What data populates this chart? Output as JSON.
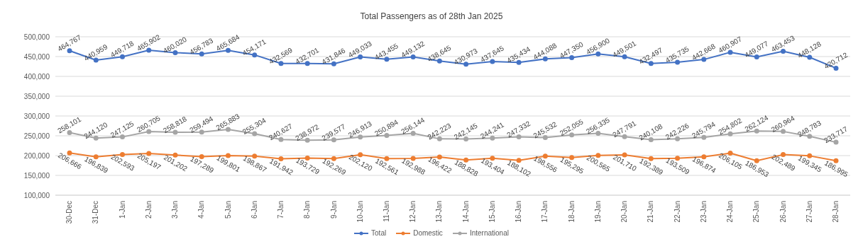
{
  "chart_data": {
    "type": "line",
    "title": "Total Passengers as of 28th Jan 2025",
    "categories": [
      "30-Dec",
      "31-Dec",
      "1-Jan",
      "2-Jan",
      "3-Jan",
      "4-Jan",
      "5-Jan",
      "6-Jan",
      "7-Jan",
      "8-Jan",
      "9-Jan",
      "10-Jan",
      "11-Jan",
      "12-Jan",
      "13-Jan",
      "14-Jan",
      "15-Jan",
      "16-Jan",
      "17-Jan",
      "18-Jan",
      "19-Jan",
      "20-Jan",
      "21-Jan",
      "22-Jan",
      "23-Jan",
      "24-Jan",
      "25-Jan",
      "26-Jan",
      "27-Jan",
      "28-Jan"
    ],
    "series": [
      {
        "name": "Total",
        "color": "#4472c4",
        "values": [
          464767,
          440959,
          449718,
          465902,
          460020,
          456783,
          465684,
          454171,
          432569,
          432701,
          431846,
          449033,
          443455,
          449132,
          438645,
          430973,
          437645,
          435434,
          444088,
          447350,
          456900,
          449501,
          432497,
          435735,
          442668,
          460907,
          449077,
          463453,
          448128,
          420712
        ],
        "value_labels": [
          "464,767",
          "440,959",
          "449,718",
          "465,902",
          "460,020",
          "456,783",
          "465,684",
          "454,171",
          "432,569",
          "432,701",
          "431,846",
          "449,033",
          "443,455",
          "449,132",
          "438,645",
          "430,973",
          "437,645",
          "435,434",
          "444,088",
          "447,350",
          "456,900",
          "449,501",
          "432,497",
          "435,735",
          "442,668",
          "460,907",
          "449,077",
          "463,453",
          "448,128",
          "420,712"
        ]
      },
      {
        "name": "Domestic",
        "color": "#ed7d31",
        "values": [
          206666,
          196839,
          202593,
          205197,
          201202,
          197289,
          199801,
          198867,
          191942,
          193729,
          192269,
          202120,
          192561,
          192988,
          196422,
          188828,
          193404,
          188102,
          198556,
          195295,
          200565,
          201710,
          192389,
          193509,
          196874,
          206105,
          186953,
          202489,
          199345,
          186995
        ],
        "value_labels": [
          "206,666",
          "196,839",
          "202,593",
          "205,197",
          "201,202",
          "197,289",
          "199,801",
          "198,867",
          "191,942",
          "193,729",
          "192,269",
          "202,120",
          "192,561",
          "192,988",
          "196,422",
          "188,828",
          "193,404",
          "188,102",
          "198,556",
          "195,295",
          "200,565",
          "201,710",
          "192,389",
          "193,509",
          "196,874",
          "206,105",
          "186,953",
          "202,489",
          "199,345",
          "186,995"
        ]
      },
      {
        "name": "International",
        "color": "#a5a5a5",
        "values": [
          258101,
          244120,
          247125,
          260705,
          258818,
          259494,
          265883,
          255304,
          240627,
          238972,
          239577,
          246913,
          250894,
          256144,
          242223,
          242145,
          244241,
          247332,
          245532,
          252055,
          256335,
          247791,
          240108,
          242226,
          245794,
          254802,
          262124,
          260964,
          248783,
          233717
        ],
        "value_labels": [
          "258,101",
          "244,120",
          "247,125",
          "260,705",
          "258,818",
          "259,494",
          "265,883",
          "255,304",
          "240,627",
          "238,972",
          "239,577",
          "246,913",
          "250,894",
          "256,144",
          "242,223",
          "242,145",
          "244,241",
          "247,332",
          "245,532",
          "252,055",
          "256,335",
          "247,791",
          "240,108",
          "242,226",
          "245,794",
          "254,802",
          "262,124",
          "260,964",
          "248,783",
          "233,717"
        ]
      }
    ],
    "ylim": [
      100000,
      500000
    ],
    "yticks": [
      {
        "value": 100000,
        "label": "100,000"
      },
      {
        "value": 150000,
        "label": "150,000"
      },
      {
        "value": 200000,
        "label": "200,000"
      },
      {
        "value": 250000,
        "label": "250,000"
      },
      {
        "value": 300000,
        "label": "300,000"
      },
      {
        "value": 350000,
        "label": "350,000"
      },
      {
        "value": 400000,
        "label": "400,000"
      },
      {
        "value": 450000,
        "label": "450,000"
      },
      {
        "value": 500000,
        "label": "500,000"
      }
    ],
    "grid": "y",
    "legend": "bottom",
    "marker": "circle",
    "line_style": "solid"
  }
}
